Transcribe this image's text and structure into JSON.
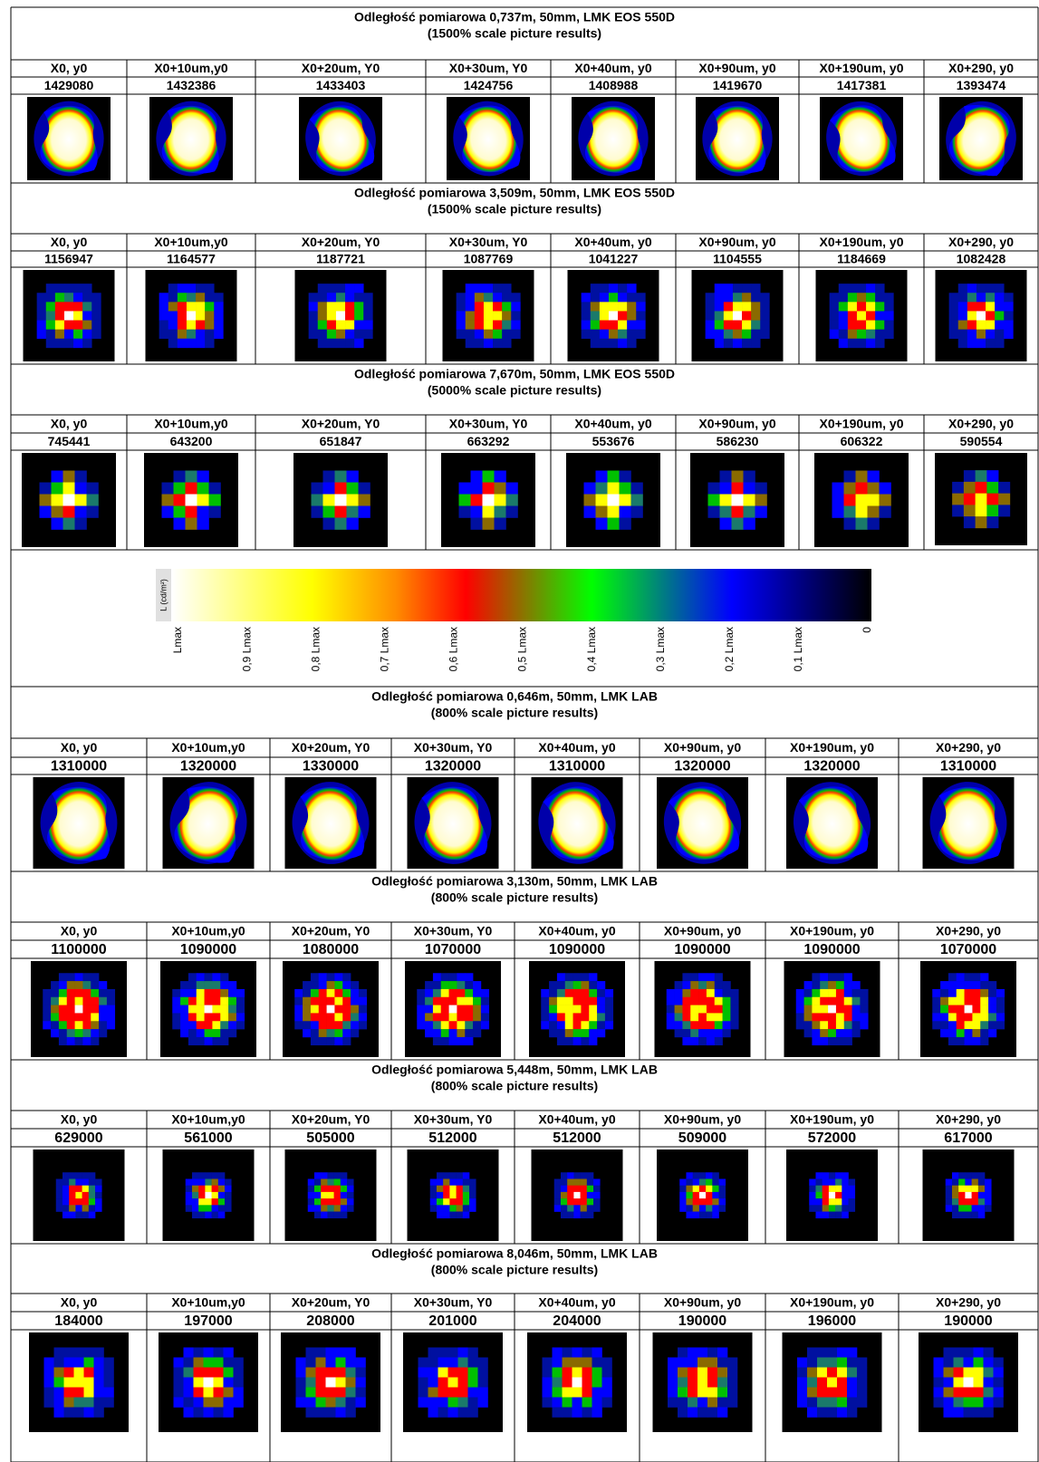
{
  "sections": [
    {
      "title": "Odległość pomiarowa 0,737m, 50mm, LMK EOS 550D",
      "subtitle": "(1500% scale picture results)",
      "headers": [
        "X0, y0",
        "X0+10um,y0",
        "X0+20um, Y0",
        "X0+30um, Y0",
        "X0+40um, y0",
        "X0+90um, y0",
        "X0+190um, y0",
        "X0+290, y0"
      ],
      "values": [
        1429080,
        1432386,
        1433403,
        1424756,
        1408988,
        1419670,
        1417381,
        1393474
      ]
    },
    {
      "title": "Odległość pomiarowa 3,509m, 50mm, LMK EOS 550D",
      "subtitle": "(1500% scale picture results)",
      "headers": [
        "X0, y0",
        "X0+10um,y0",
        "X0+20um, Y0",
        "X0+30um, Y0",
        "X0+40um, y0",
        "X0+90um, y0",
        "X0+190um, y0",
        "X0+290, y0"
      ],
      "values": [
        1156947,
        1164577,
        1187721,
        1087769,
        1041227,
        1104555,
        1184669,
        1082428
      ]
    },
    {
      "title": "Odległość pomiarowa 7,670m, 50mm, LMK EOS 550D",
      "subtitle": "(5000% scale picture results)",
      "headers": [
        "X0, y0",
        "X0+10um,y0",
        "X0+20um, Y0",
        "X0+30um, Y0",
        "X0+40um, y0",
        "X0+90um, y0",
        "X0+190um, y0",
        "X0+290, y0"
      ],
      "values": [
        745441,
        643200,
        651847,
        663292,
        553676,
        586230,
        606322,
        590554
      ]
    },
    {
      "title": "Odległość pomiarowa 0,646m, 50mm, LMK LAB",
      "subtitle": "(800% scale picture results)",
      "headers": [
        "X0, y0",
        "X0+10um,y0",
        "X0+20um, Y0",
        "X0+30um, Y0",
        "X0+40um, y0",
        "X0+90um, y0",
        "X0+190um, y0",
        "X0+290, y0"
      ],
      "values": [
        1310000,
        1320000,
        1330000,
        1320000,
        1310000,
        1320000,
        1320000,
        1310000
      ]
    },
    {
      "title": "Odległość pomiarowa 3,130m, 50mm, LMK LAB",
      "subtitle": "(800% scale picture results)",
      "headers": [
        "X0, y0",
        "X0+10um,y0",
        "X0+20um, Y0",
        "X0+30um, Y0",
        "X0+40um, y0",
        "X0+90um, y0",
        "X0+190um, y0",
        "X0+290, y0"
      ],
      "values": [
        1100000,
        1090000,
        1080000,
        1070000,
        1090000,
        1090000,
        1090000,
        1070000
      ]
    },
    {
      "title": "Odległość pomiarowa 5,448m, 50mm, LMK LAB",
      "subtitle": "(800% scale picture results)",
      "headers": [
        "X0, y0",
        "X0+10um,y0",
        "X0+20um, Y0",
        "X0+30um, Y0",
        "X0+40um, y0",
        "X0+90um, y0",
        "X0+190um, y0",
        "X0+290, y0"
      ],
      "values": [
        629000,
        561000,
        505000,
        512000,
        512000,
        509000,
        572000,
        617000
      ]
    },
    {
      "title": "Odległość pomiarowa 8,046m, 50mm, LMK LAB",
      "subtitle": "(800% scale picture results)",
      "headers": [
        "X0, y0",
        "X0+10um,y0",
        "X0+20um, Y0",
        "X0+30um, Y0",
        "X0+40um, y0",
        "X0+90um, y0",
        "X0+190um, y0",
        "X0+290, y0"
      ],
      "values": [
        184000,
        197000,
        208000,
        201000,
        204000,
        190000,
        196000,
        190000
      ]
    }
  ],
  "colorbar": {
    "axis_label": "L (cd/m²)",
    "labels": [
      "Lmax",
      "0,9 Lmax",
      "0,8 Lmax",
      "0,7 Lmax",
      "0,6 Lmax",
      "0,5 Lmax",
      "0,4 Lmax",
      "0,3 Lmax",
      "0,2 Lmax",
      "0,1 Lmax",
      "0"
    ]
  }
}
